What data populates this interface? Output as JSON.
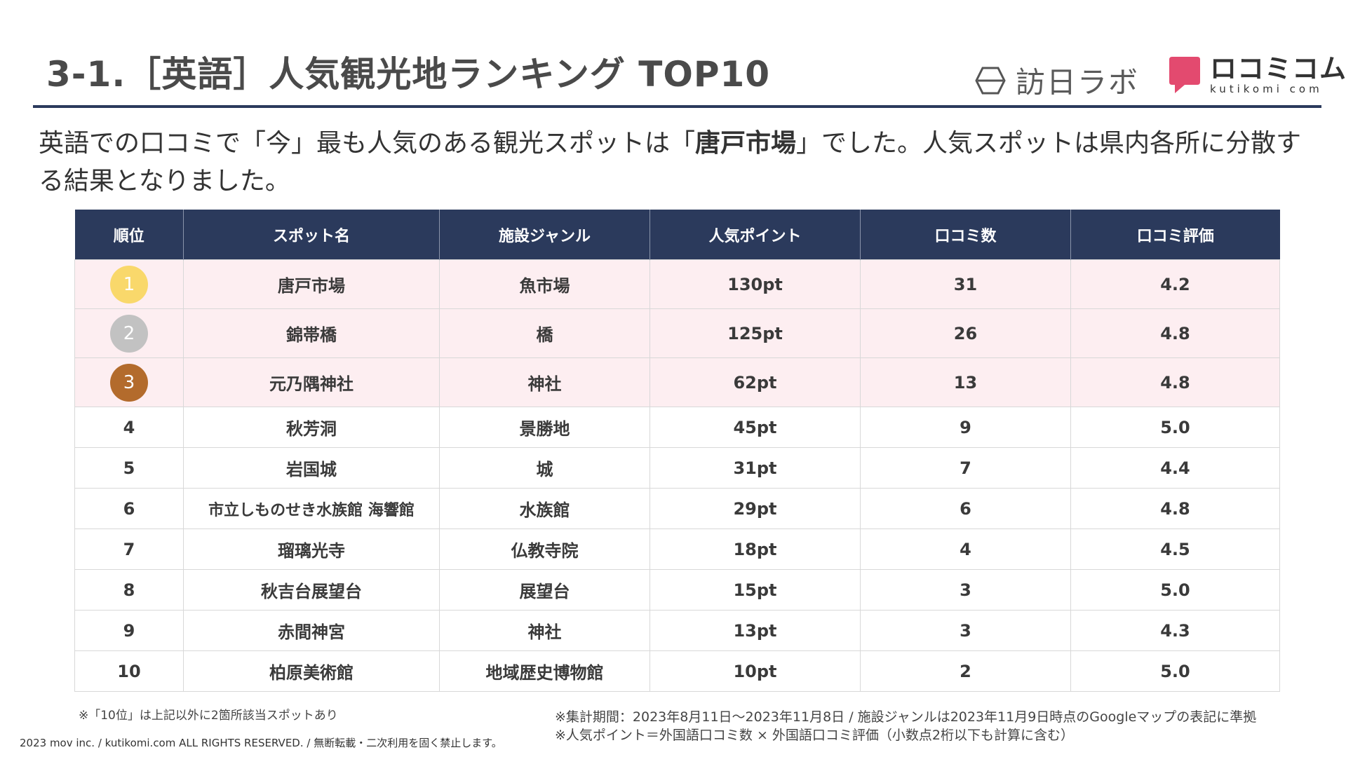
{
  "header": {
    "title": "3-1.［英語］人気観光地ランキング TOP10",
    "logo_houjin": "訪日ラボ",
    "logo_kutikomi_main": "ロコミコム",
    "logo_kutikomi_sub": "kutikomi com",
    "accent_color": "#2b3a5c",
    "logo_pink": "#e34a6f"
  },
  "lead": {
    "part1": "英語での口コミで「今」最も人気のある観光スポットは「",
    "highlight": "唐戸市場",
    "part2": "」でした。人気スポットは県内各所に分散する結果となりました。"
  },
  "table": {
    "headers": [
      "順位",
      "スポット名",
      "施設ジャンル",
      "人気ポイント",
      "口コミ数",
      "口コミ評価"
    ],
    "rows": [
      {
        "rank": "1",
        "spot": "唐戸市場",
        "genre": "魚市場",
        "points": "130pt",
        "count": "31",
        "rating": "4.2"
      },
      {
        "rank": "2",
        "spot": "錦帯橋",
        "genre": "橋",
        "points": "125pt",
        "count": "26",
        "rating": "4.8"
      },
      {
        "rank": "3",
        "spot": "元乃隅神社",
        "genre": "神社",
        "points": "62pt",
        "count": "13",
        "rating": "4.8"
      },
      {
        "rank": "4",
        "spot": "秋芳洞",
        "genre": "景勝地",
        "points": "45pt",
        "count": "9",
        "rating": "5.0"
      },
      {
        "rank": "5",
        "spot": "岩国城",
        "genre": "城",
        "points": "31pt",
        "count": "7",
        "rating": "4.4"
      },
      {
        "rank": "6",
        "spot": "市立しものせき水族館 海響館",
        "genre": "水族館",
        "points": "29pt",
        "count": "6",
        "rating": "4.8"
      },
      {
        "rank": "7",
        "spot": "瑠璃光寺",
        "genre": "仏教寺院",
        "points": "18pt",
        "count": "4",
        "rating": "4.5"
      },
      {
        "rank": "8",
        "spot": "秋吉台展望台",
        "genre": "展望台",
        "points": "15pt",
        "count": "3",
        "rating": "5.0"
      },
      {
        "rank": "9",
        "spot": "赤間神宮",
        "genre": "神社",
        "points": "13pt",
        "count": "3",
        "rating": "4.3"
      },
      {
        "rank": "10",
        "spot": "柏原美術館",
        "genre": "地域歴史博物館",
        "points": "10pt",
        "count": "2",
        "rating": "5.0"
      }
    ]
  },
  "footer": {
    "note_left": "※「10位」は上記以外に2箇所該当スポットあり",
    "note_right_1": "※集計期間：2023年8月11日～2023年11月8日 / 施設ジャンルは2023年11月9日時点のGoogleマップの表記に準拠",
    "note_right_2": "※人気ポイント＝外国語口コミ数 × 外国語口コミ評価（小数点2桁以下も計算に含む）",
    "copyright": "2023 mov inc. / kutikomi.com ALL RIGHTS RESERVED. / 無断転載・二次利用を固く禁止します。"
  }
}
